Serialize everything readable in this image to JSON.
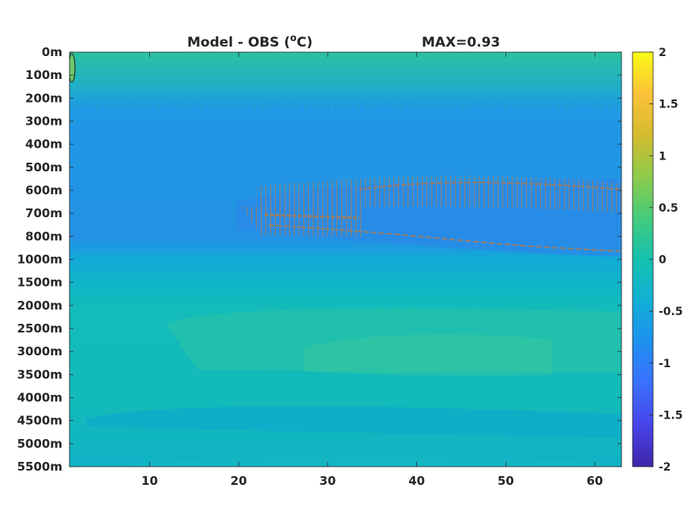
{
  "chart_data": {
    "type": "heatmap",
    "title_left": "Model - OBS (",
    "title_unit_sup": "o",
    "title_unit_tail": "C)",
    "title_right": "MAX=0.93",
    "xlabel": "",
    "ylabel": "",
    "xlim": [
      1,
      63
    ],
    "x_ticks": [
      10,
      20,
      30,
      40,
      50,
      60
    ],
    "y_tick_labels": [
      "0m",
      "100m",
      "200m",
      "300m",
      "400m",
      "500m",
      "600m",
      "700m",
      "800m",
      "1000m",
      "1500m",
      "2000m",
      "2500m",
      "3000m",
      "3500m",
      "4000m",
      "4500m",
      "5000m",
      "5500m"
    ],
    "colorbar": {
      "range": [
        -2,
        2
      ],
      "ticks": [
        2,
        1.5,
        1,
        0.5,
        0,
        -0.5,
        -1,
        -1.5,
        -2
      ],
      "tick_labels": [
        "2",
        "1.5",
        "1",
        "0.5",
        "0",
        "-0.5",
        "-1",
        "-1.5",
        "-2"
      ],
      "colormap": "parula",
      "stops": [
        "#3e26a8",
        "#4744e9",
        "#3a70fe",
        "#1e90ef",
        "#12b0d6",
        "#14c1b0",
        "#45cb7c",
        "#8ecb4a",
        "#d4bb2f",
        "#fcc239",
        "#f9fb15"
      ]
    },
    "contour_color": "#9a7e68",
    "regions": [
      {
        "name": "surface-stripes",
        "x": [
          1,
          63
        ],
        "depth_index": [
          0,
          2.5
        ],
        "value": 0.18
      },
      {
        "name": "upper-cool",
        "x": [
          1,
          63
        ],
        "depth_index": [
          2,
          9
        ],
        "value": -0.55
      },
      {
        "name": "deep-cool-core",
        "x": [
          22,
          63
        ],
        "depth_index": [
          6,
          9
        ],
        "value": -0.75
      },
      {
        "name": "transition",
        "x": [
          1,
          63
        ],
        "depth_index": [
          9,
          11
        ],
        "value": -0.1
      },
      {
        "name": "deep-warm",
        "x": [
          1,
          63
        ],
        "depth_index": [
          11,
          18
        ],
        "value": 0.1
      },
      {
        "name": "warm-patch",
        "x": [
          12,
          60
        ],
        "depth_index": [
          12.5,
          15.5
        ],
        "value": 0.25
      },
      {
        "name": "bottom-cool",
        "x": [
          3,
          63
        ],
        "depth_index": [
          15.5,
          17.5
        ],
        "value": -0.05
      }
    ]
  }
}
